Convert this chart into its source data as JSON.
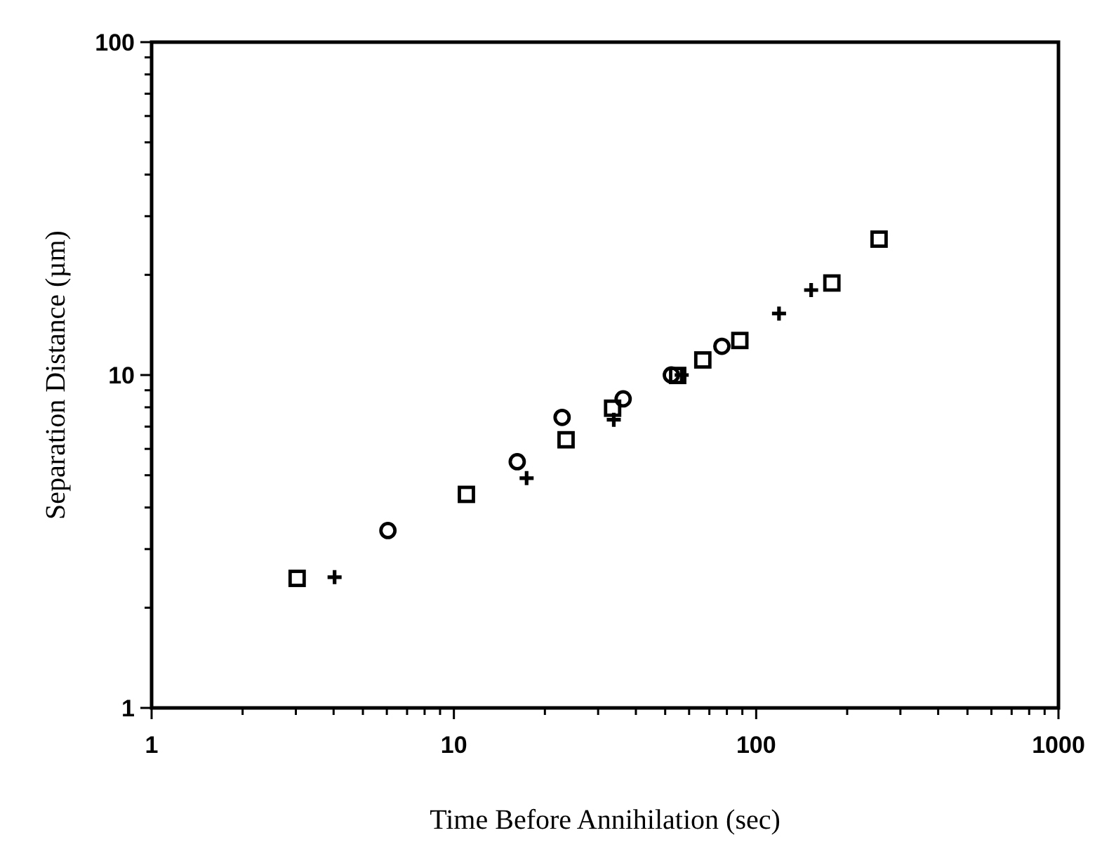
{
  "chart_data": {
    "type": "scatter",
    "xlabel": "Time Before Annihilation (sec)",
    "ylabel": "Separation Distance (µm)",
    "log": "xy",
    "grid": false,
    "xlim": [
      1,
      1000
    ],
    "ylim": [
      1,
      100
    ],
    "xticks": [
      1,
      {
        "value": 2,
        "label": null
      },
      {
        "value": 3,
        "label": null
      },
      {
        "value": 4,
        "label": null
      },
      {
        "value": 5,
        "label": null
      },
      {
        "value": 6,
        "label": null
      },
      {
        "value": 7,
        "label": null
      },
      {
        "value": 8,
        "label": null
      },
      {
        "value": 9,
        "label": null
      },
      10,
      {
        "value": 20,
        "label": null
      },
      {
        "value": 30,
        "label": null
      },
      {
        "value": 40,
        "label": null
      },
      {
        "value": 50,
        "label": null
      },
      {
        "value": 60,
        "label": null
      },
      {
        "value": 70,
        "label": null
      },
      {
        "value": 80,
        "label": null
      },
      {
        "value": 90,
        "label": null
      },
      100,
      {
        "value": 200,
        "label": null
      },
      {
        "value": 300,
        "label": null
      },
      {
        "value": 400,
        "label": null
      },
      {
        "value": 500,
        "label": null
      },
      {
        "value": 600,
        "label": null
      },
      {
        "value": 700,
        "label": null
      },
      {
        "value": 800,
        "label": null
      },
      {
        "value": 900,
        "label": null
      },
      1000
    ],
    "yticks": [
      1,
      {
        "value": 2,
        "label": null
      },
      {
        "value": 3,
        "label": null
      },
      {
        "value": 4,
        "label": null
      },
      {
        "value": 5,
        "label": null
      },
      {
        "value": 6,
        "label": null
      },
      {
        "value": 7,
        "label": null
      },
      {
        "value": 8,
        "label": null
      },
      {
        "value": 9,
        "label": null
      },
      10,
      {
        "value": 20,
        "label": null
      },
      {
        "value": 30,
        "label": null
      },
      {
        "value": 40,
        "label": null
      },
      {
        "value": 50,
        "label": null
      },
      {
        "value": 60,
        "label": null
      },
      {
        "value": 70,
        "label": null
      },
      {
        "value": 80,
        "label": null
      },
      {
        "value": 90,
        "label": null
      },
      100
    ],
    "series": [
      {
        "color": "#000000",
        "marker": "square",
        "x": [
          3.03,
          11.0,
          23.5,
          33.5,
          55,
          66.6,
          88.3,
          178,
          255
        ],
        "values": [
          2.45,
          4.38,
          6.39,
          7.95,
          9.97,
          11.1,
          12.7,
          18.9,
          25.6
        ]
      },
      {
        "color": "#000000",
        "marker": "circle",
        "x": [
          6.05,
          16.2,
          22.8,
          36.3,
          52.4,
          77
        ],
        "values": [
          3.41,
          5.49,
          7.46,
          8.48,
          10.0,
          12.2
        ]
      },
      {
        "color": "#000000",
        "marker": "cross",
        "x": [
          4.03,
          17.4,
          33.8,
          56.7,
          119,
          152
        ],
        "values": [
          2.47,
          4.9,
          7.34,
          10.0,
          15.3,
          18.0
        ]
      }
    ]
  }
}
